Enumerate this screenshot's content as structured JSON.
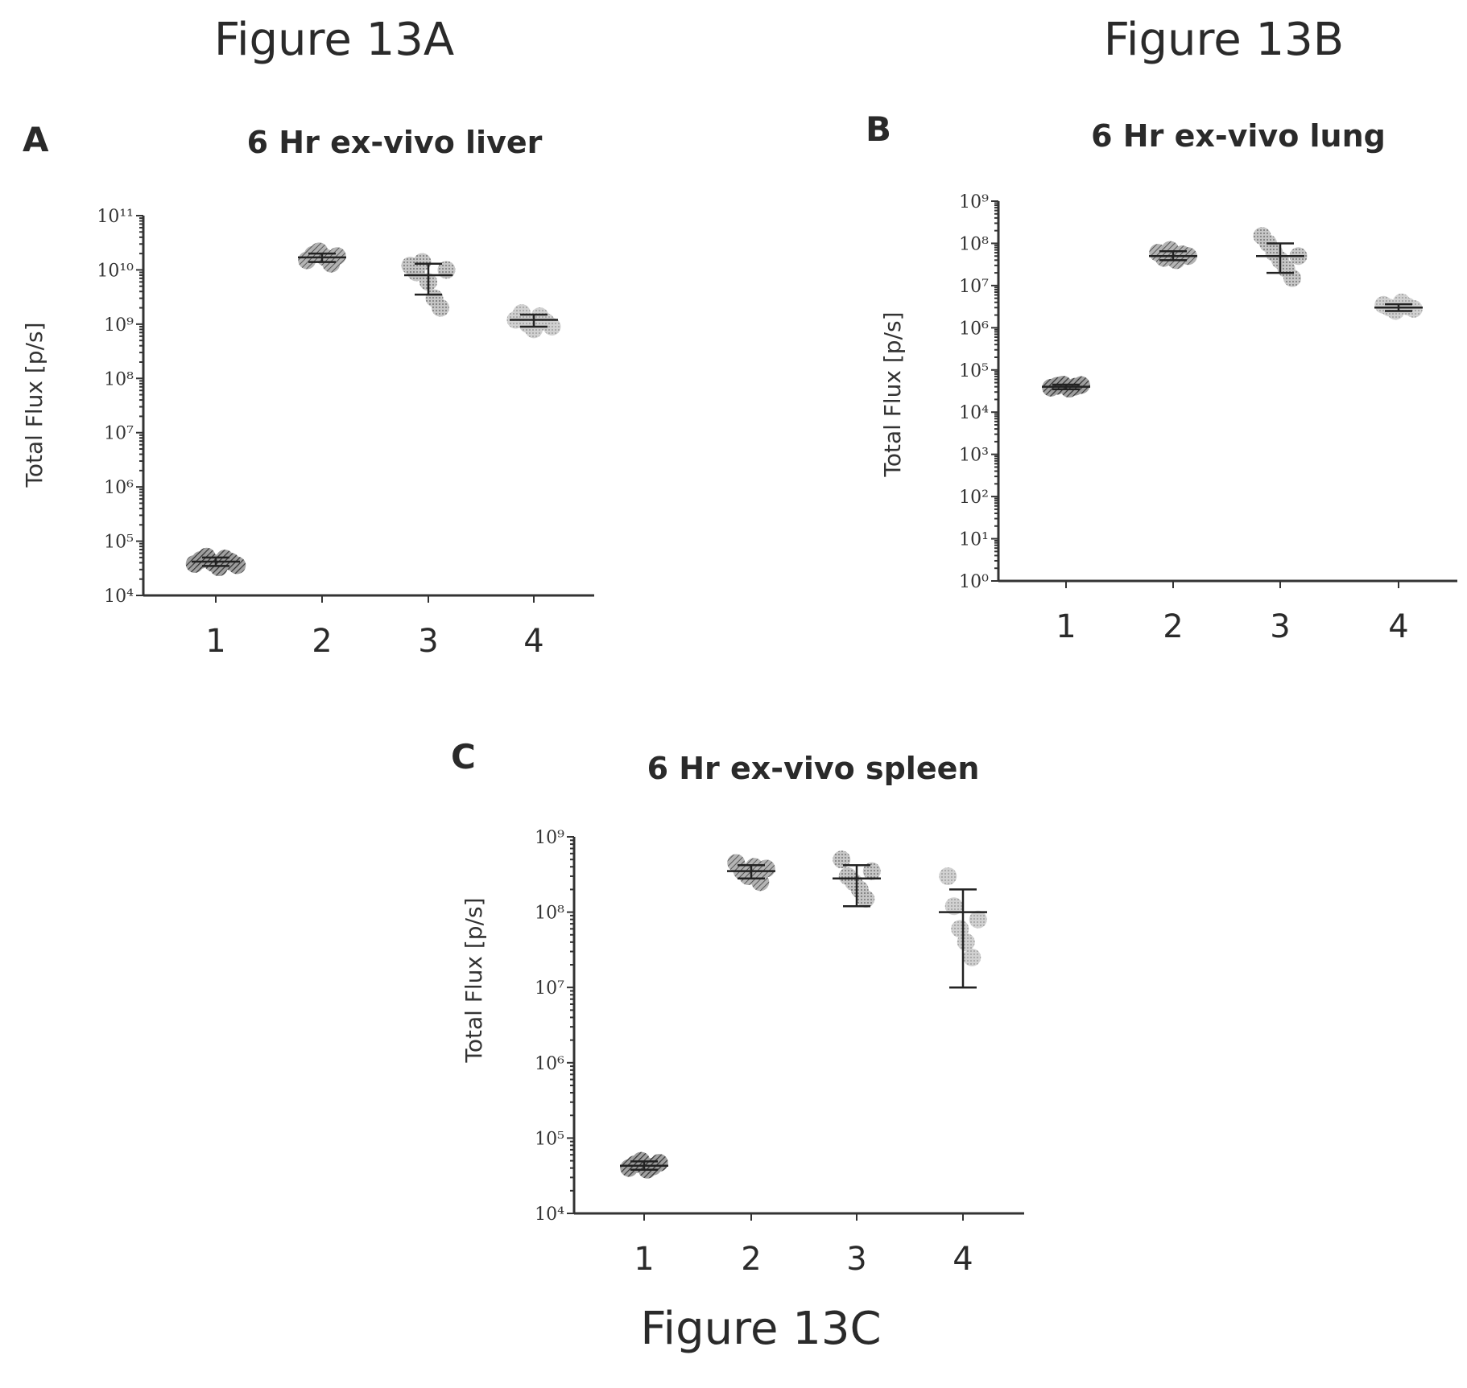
{
  "figure_captions": {
    "a": "Figure 13A",
    "b": "Figure 13B",
    "c": "Figure 13C"
  },
  "chart_data": [
    {
      "id": "A",
      "type": "scatter",
      "panel_letter": "A",
      "title": "6 Hr ex-vivo liver",
      "ylabel": "Total Flux [p/s]",
      "xlabel": "",
      "categories": [
        "1",
        "2",
        "3",
        "4"
      ],
      "y_scale": "log",
      "ylim": [
        10000,
        100000000000
      ],
      "y_tick_exponents": [
        4,
        5,
        6,
        7,
        8,
        9,
        10,
        11
      ],
      "grid": false,
      "groups": [
        {
          "category": "1",
          "points": [
            38000,
            45000,
            52000,
            40000,
            33000,
            48000,
            42000,
            36000
          ],
          "mean": 42000,
          "sd_low": 35000,
          "sd_high": 50000,
          "color": "#5a5a5a"
        },
        {
          "category": "2",
          "points": [
            15000000000,
            19000000000,
            22000000000,
            17000000000,
            13000000000,
            18000000000
          ],
          "mean": 17000000000,
          "sd_low": 14000000000,
          "sd_high": 20000000000,
          "color": "#7a7a7a"
        },
        {
          "category": "3",
          "points": [
            12000000000,
            9000000000,
            14000000000,
            6000000000,
            3000000000,
            2000000000,
            10000000000
          ],
          "mean": 8000000000,
          "sd_low": 3500000000,
          "sd_high": 13000000000,
          "color": "#9a9a9a"
        },
        {
          "category": "4",
          "points": [
            1200000000,
            1600000000,
            1000000000,
            800000000,
            1400000000,
            1100000000,
            900000000
          ],
          "mean": 1200000000,
          "sd_low": 900000000,
          "sd_high": 1500000000,
          "color": "#a8a8a8"
        }
      ]
    },
    {
      "id": "B",
      "type": "scatter",
      "panel_letter": "B",
      "title": "6 Hr ex-vivo lung",
      "ylabel": "Total Flux [p/s]",
      "xlabel": "",
      "categories": [
        "1",
        "2",
        "3",
        "4"
      ],
      "y_scale": "log",
      "ylim": [
        1,
        1000000000
      ],
      "y_tick_exponents": [
        0,
        1,
        2,
        3,
        4,
        5,
        6,
        7,
        8,
        9
      ],
      "grid": false,
      "groups": [
        {
          "category": "1",
          "points": [
            38000,
            42000,
            45000,
            36000,
            40000,
            44000
          ],
          "mean": 40000,
          "sd_low": 35000,
          "sd_high": 45000,
          "color": "#5a5a5a"
        },
        {
          "category": "2",
          "points": [
            60000000,
            45000000,
            70000000,
            40000000,
            55000000,
            50000000
          ],
          "mean": 50000000,
          "sd_low": 40000000,
          "sd_high": 65000000,
          "color": "#7a7a7a"
        },
        {
          "category": "3",
          "points": [
            150000000,
            100000000,
            60000000,
            40000000,
            25000000,
            15000000,
            50000000
          ],
          "mean": 50000000,
          "sd_low": 20000000,
          "sd_high": 100000000,
          "color": "#9a9a9a"
        },
        {
          "category": "4",
          "points": [
            3500000,
            3000000,
            2500000,
            4000000,
            3200000,
            2800000
          ],
          "mean": 3000000,
          "sd_low": 2500000,
          "sd_high": 3600000,
          "color": "#a8a8a8"
        }
      ]
    },
    {
      "id": "C",
      "type": "scatter",
      "panel_letter": "C",
      "title": "6 Hr ex-vivo spleen",
      "ylabel": "Total Flux [p/s]",
      "xlabel": "",
      "categories": [
        "1",
        "2",
        "3",
        "4"
      ],
      "y_scale": "log",
      "ylim": [
        10000,
        1000000000
      ],
      "y_tick_exponents": [
        4,
        5,
        6,
        7,
        8,
        9
      ],
      "grid": false,
      "groups": [
        {
          "category": "1",
          "points": [
            40000,
            45000,
            50000,
            38000,
            42000,
            47000
          ],
          "mean": 43000,
          "sd_low": 38000,
          "sd_high": 49000,
          "color": "#5a5a5a"
        },
        {
          "category": "2",
          "points": [
            450000000,
            350000000,
            300000000,
            400000000,
            250000000,
            380000000
          ],
          "mean": 350000000,
          "sd_low": 280000000,
          "sd_high": 420000000,
          "color": "#7a7a7a"
        },
        {
          "category": "3",
          "points": [
            500000000,
            300000000,
            250000000,
            200000000,
            150000000,
            350000000
          ],
          "mean": 280000000,
          "sd_low": 120000000,
          "sd_high": 420000000,
          "color": "#9a9a9a"
        },
        {
          "category": "4",
          "points": [
            300000000,
            120000000,
            60000000,
            40000000,
            25000000,
            80000000
          ],
          "mean": 100000000,
          "sd_low": 10000000,
          "sd_high": 200000000,
          "color": "#a8a8a8"
        }
      ]
    }
  ]
}
